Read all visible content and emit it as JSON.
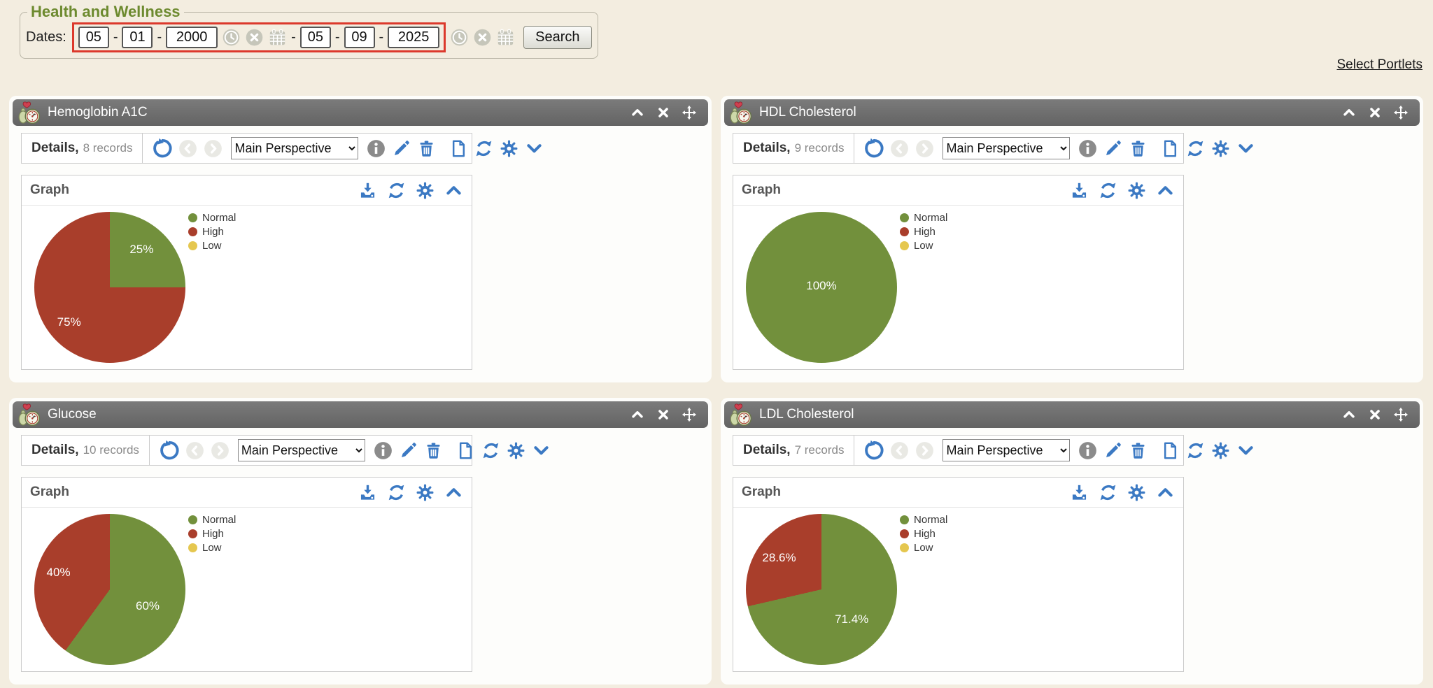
{
  "header": {
    "legend": "Health and Wellness",
    "dates_label": "Dates:",
    "separator": "-",
    "range_separator": "-",
    "from": {
      "month": "05",
      "day": "01",
      "year": "2000"
    },
    "to": {
      "month": "05",
      "day": "09",
      "year": "2025"
    },
    "search_label": "Search",
    "highlight_color": "#dc392c"
  },
  "select_portlets_link": "Select Portlets",
  "legend": [
    {
      "label": "Normal",
      "color": "#72903c"
    },
    {
      "label": "High",
      "color": "#a93e2b"
    },
    {
      "label": "Low",
      "color": "#e5c74f"
    }
  ],
  "portlets": [
    {
      "title": "Hemoglobin A1C",
      "details_label": "Details,",
      "records": "8 records",
      "perspective": "Main Perspective",
      "graph_label": "Graph"
    },
    {
      "title": "HDL Cholesterol",
      "details_label": "Details,",
      "records": "9 records",
      "perspective": "Main Perspective",
      "graph_label": "Graph"
    },
    {
      "title": "Glucose",
      "details_label": "Details,",
      "records": "10 records",
      "perspective": "Main Perspective",
      "graph_label": "Graph"
    },
    {
      "title": "LDL Cholesterol",
      "details_label": "Details,",
      "records": "7 records",
      "perspective": "Main Perspective",
      "graph_label": "Graph"
    }
  ],
  "chart_data": [
    {
      "type": "pie",
      "title": "Hemoglobin A1C",
      "legend": [
        "Normal",
        "High",
        "Low"
      ],
      "legend_position": "right",
      "slices": [
        {
          "label": "Normal",
          "value": 25,
          "display": "25%",
          "color": "#72903c"
        },
        {
          "label": "High",
          "value": 75,
          "display": "75%",
          "color": "#a93e2b"
        },
        {
          "label": "Low",
          "value": 0,
          "display": "",
          "color": "#e5c74f"
        }
      ]
    },
    {
      "type": "pie",
      "title": "HDL Cholesterol",
      "legend": [
        "Normal",
        "High",
        "Low"
      ],
      "legend_position": "right",
      "slices": [
        {
          "label": "Normal",
          "value": 100,
          "display": "100%",
          "color": "#72903c"
        },
        {
          "label": "High",
          "value": 0,
          "display": "",
          "color": "#a93e2b"
        },
        {
          "label": "Low",
          "value": 0,
          "display": "",
          "color": "#e5c74f"
        }
      ]
    },
    {
      "type": "pie",
      "title": "Glucose",
      "legend": [
        "Normal",
        "High",
        "Low"
      ],
      "legend_position": "right",
      "slices": [
        {
          "label": "Normal",
          "value": 60,
          "display": "60%",
          "color": "#72903c"
        },
        {
          "label": "High",
          "value": 40,
          "display": "40%",
          "color": "#a93e2b"
        },
        {
          "label": "Low",
          "value": 0,
          "display": "",
          "color": "#e5c74f"
        }
      ]
    },
    {
      "type": "pie",
      "title": "LDL Cholesterol",
      "legend": [
        "Normal",
        "High",
        "Low"
      ],
      "legend_position": "right",
      "slices": [
        {
          "label": "Normal",
          "value": 71.4,
          "display": "71.4%",
          "color": "#72903c"
        },
        {
          "label": "High",
          "value": 28.6,
          "display": "28.6%",
          "color": "#a93e2b"
        },
        {
          "label": "Low",
          "value": 0,
          "display": "",
          "color": "#e5c74f"
        }
      ]
    }
  ]
}
